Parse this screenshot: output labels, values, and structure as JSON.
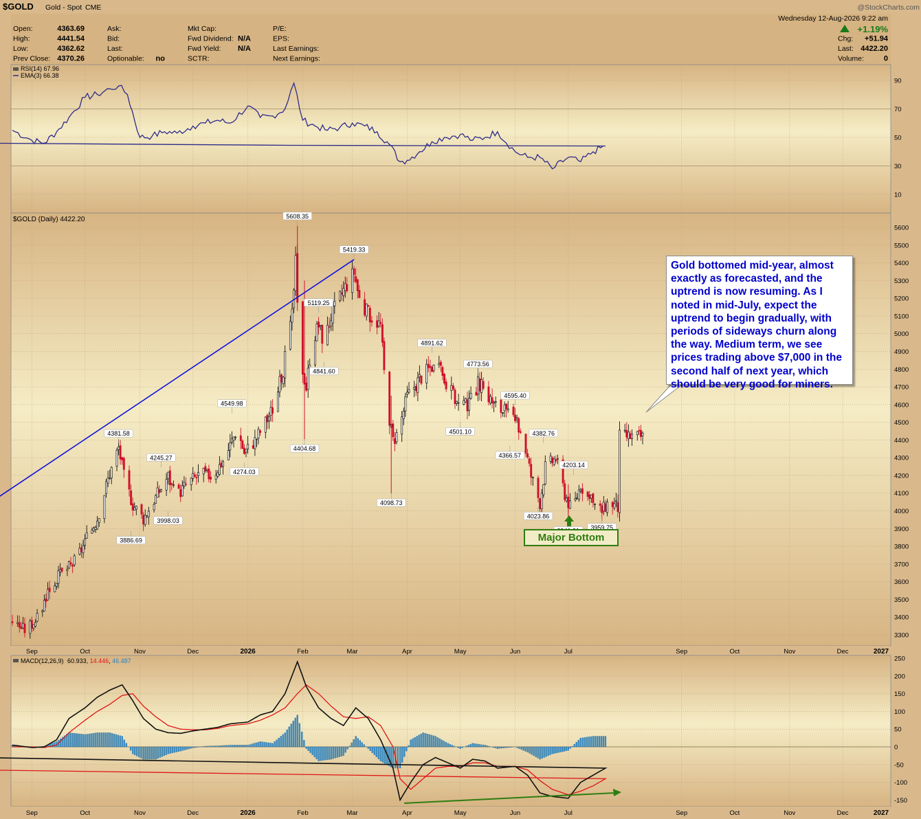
{
  "header": {
    "symbol": "$GOLD",
    "name": "Gold - Spot",
    "exchange": "CME",
    "date": "Wednesday  12-Aug-2026  9:22 am",
    "watermark": "@StockCharts.com",
    "pct_change": "+1.19%",
    "quote_left": [
      {
        "label": "Open:",
        "value": "4363.69"
      },
      {
        "label": "High:",
        "value": "4441.54"
      },
      {
        "label": "Low:",
        "value": "4362.62"
      },
      {
        "label": "Prev Close:",
        "value": "4370.26"
      }
    ],
    "quote_mid": [
      {
        "label": "Ask:",
        "value": ""
      },
      {
        "label": "Bid:",
        "value": ""
      },
      {
        "label": "Last:",
        "value": ""
      },
      {
        "label": "Optionable:",
        "value": "no"
      }
    ],
    "quote_fund": [
      {
        "label": "Mkt Cap:",
        "value": ""
      },
      {
        "label": "Fwd Dividend:",
        "value": "N/A"
      },
      {
        "label": "Fwd Yield:",
        "value": "N/A"
      },
      {
        "label": "SCTR:",
        "value": ""
      }
    ],
    "quote_earn": [
      {
        "label": "P/E:",
        "value": ""
      },
      {
        "label": "EPS:",
        "value": ""
      },
      {
        "label": "Last Earnings:",
        "value": ""
      },
      {
        "label": "Next Earnings:",
        "value": ""
      }
    ],
    "quote_right": [
      {
        "label": "Chg:",
        "value": "+51.94"
      },
      {
        "label": "Last:",
        "value": "4422.20"
      },
      {
        "label": "Volume:",
        "value": "0"
      }
    ]
  },
  "chart_data": [
    {
      "type": "line",
      "panel": "rsi",
      "legend": [
        "RSI(14) 67.96",
        "EMA(3) 66.38"
      ],
      "ylim": [
        0,
        100
      ],
      "yticks": [
        10,
        30,
        50,
        70,
        90
      ],
      "x": [
        "Aug 21",
        "Sep 1",
        "Sep 8",
        "Sep 15",
        "Sep 22",
        "Oct 1",
        "Oct 8",
        "Oct 15",
        "Oct 20",
        "Oct 25",
        "Nov 1",
        "Nov 8",
        "Nov 15",
        "Nov 22",
        "Dec 1",
        "Dec 8",
        "Dec 15",
        "Dec 22",
        "Jan 1",
        "Jan 8",
        "Jan 15",
        "Jan 22",
        "Jan 27",
        "Feb 1",
        "Feb 8",
        "Feb 15",
        "Feb 22",
        "Mar 1",
        "Mar 8",
        "Mar 15",
        "Mar 22",
        "Mar 28",
        "Apr 1",
        "Apr 8",
        "Apr 15",
        "Apr 22",
        "May 1",
        "May 8",
        "May 15",
        "May 22",
        "Jun 1",
        "Jun 8",
        "Jun 15",
        "Jun 22",
        "Jul 1",
        "Jul 8",
        "Jul 15",
        "Jul 22",
        "Aug 1",
        "Aug 8",
        "Aug 12"
      ],
      "y": [
        55,
        48,
        46,
        54,
        64,
        78,
        80,
        84,
        86,
        80,
        50,
        51,
        54,
        53,
        58,
        60,
        62,
        60,
        72,
        64,
        65,
        70,
        88,
        62,
        58,
        55,
        57,
        60,
        58,
        54,
        45,
        33,
        34,
        40,
        47,
        50,
        52,
        48,
        50,
        54,
        40,
        36,
        36,
        28,
        36,
        33,
        40,
        44,
        46,
        55,
        68
      ]
    },
    {
      "type": "candlestick",
      "panel": "price",
      "legend": "$GOLD (Daily) 4422.20",
      "ylim": [
        3250,
        5700
      ],
      "yticks": [
        3300,
        3400,
        3500,
        3600,
        3700,
        3800,
        3900,
        4000,
        4100,
        4200,
        4300,
        4400,
        4500,
        4600,
        4700,
        4800,
        4900,
        5000,
        5100,
        5200,
        5300,
        5400,
        5500,
        5600
      ],
      "x_labels": [
        "Sep",
        "Oct",
        "Nov",
        "Dec",
        "2026",
        "Feb",
        "Mar",
        "Apr",
        "May",
        "Jun",
        "Jul",
        "Aug",
        "Sep",
        "Oct",
        "Nov",
        "Dec",
        "2027"
      ],
      "close_path": [
        [
          "Aug 21",
          3380
        ],
        [
          "Aug 28",
          3330
        ],
        [
          "Sep 5",
          3400
        ],
        [
          "Sep 10",
          3550
        ],
        [
          "Sep 17",
          3640
        ],
        [
          "Sep 24",
          3700
        ],
        [
          "Oct 1",
          3820
        ],
        [
          "Oct 8",
          3960
        ],
        [
          "Oct 14",
          4180
        ],
        [
          "Oct 20",
          4360
        ],
        [
          "Oct 23",
          4200
        ],
        [
          "Oct 28",
          4040
        ],
        [
          "Nov 3",
          3960
        ],
        [
          "Nov 10",
          4080
        ],
        [
          "Nov 17",
          4200
        ],
        [
          "Nov 21",
          4080
        ],
        [
          "Nov 28",
          4160
        ],
        [
          "Dec 5",
          4210
        ],
        [
          "Dec 12",
          4200
        ],
        [
          "Dec 19",
          4300
        ],
        [
          "Dec 26",
          4470
        ],
        [
          "Dec 30",
          4330
        ],
        [
          "Jan 5",
          4400
        ],
        [
          "Jan 12",
          4520
        ],
        [
          "Jan 16",
          4600
        ],
        [
          "Jan 21",
          4800
        ],
        [
          "Jan 26",
          5100
        ],
        [
          "Jan 28",
          5400
        ],
        [
          "Jan 30",
          4900
        ],
        [
          "Feb 3",
          4700
        ],
        [
          "Feb 6",
          4950
        ],
        [
          "Feb 10",
          5050
        ],
        [
          "Feb 13",
          4950
        ],
        [
          "Feb 17",
          5100
        ],
        [
          "Feb 24",
          5250
        ],
        [
          "Mar 2",
          5350
        ],
        [
          "Mar 6",
          5150
        ],
        [
          "Mar 12",
          5100
        ],
        [
          "Mar 17",
          5050
        ],
        [
          "Mar 20",
          4650
        ],
        [
          "Mar 24",
          4400
        ],
        [
          "Mar 27",
          4450
        ],
        [
          "Apr 1",
          4650
        ],
        [
          "Apr 8",
          4750
        ],
        [
          "Apr 15",
          4820
        ],
        [
          "Apr 20",
          4780
        ],
        [
          "Apr 27",
          4650
        ],
        [
          "May 1",
          4580
        ],
        [
          "May 6",
          4600
        ],
        [
          "May 11",
          4720
        ],
        [
          "May 15",
          4680
        ],
        [
          "May 20",
          4600
        ],
        [
          "May 26",
          4560
        ],
        [
          "Jun 1",
          4500
        ],
        [
          "Jun 5",
          4440
        ],
        [
          "Jun 10",
          4200
        ],
        [
          "Jun 15",
          4050
        ],
        [
          "Jun 18",
          4250
        ],
        [
          "Jun 24",
          4300
        ],
        [
          "Jun 29",
          4100
        ],
        [
          "Jul 3",
          4000
        ],
        [
          "Jul 8",
          4150
        ],
        [
          "Jul 14",
          4050
        ],
        [
          "Jul 20",
          4000
        ],
        [
          "Jul 24",
          4060
        ],
        [
          "Jul 29",
          4020
        ],
        [
          "Aug 3",
          4080
        ],
        [
          "Aug 6",
          4250
        ],
        [
          "Aug 10",
          4370
        ],
        [
          "Aug 12",
          4422
        ]
      ],
      "annotations": [
        {
          "date": "Oct 20",
          "value": "4381.58",
          "pos": "above"
        },
        {
          "date": "Oct 27",
          "value": "3886.69",
          "pos": "below"
        },
        {
          "date": "Nov 13",
          "value": "4245.27",
          "pos": "above"
        },
        {
          "date": "Nov 17",
          "value": "3998.03",
          "pos": "below"
        },
        {
          "date": "Dec 30",
          "value": "4274.03",
          "pos": "below"
        },
        {
          "date": "Dec 23",
          "value": "4549.98",
          "pos": "above"
        },
        {
          "date": "Jan 29",
          "value": "5608.35",
          "pos": "above"
        },
        {
          "date": "Feb 2",
          "value": "4404.68",
          "pos": "below"
        },
        {
          "date": "Feb 10",
          "value": "5119.25",
          "pos": "above"
        },
        {
          "date": "Feb 13",
          "value": "4841.60",
          "pos": "below"
        },
        {
          "date": "Mar 2",
          "value": "5419.33",
          "pos": "above"
        },
        {
          "date": "Mar 23",
          "value": "4098.73",
          "pos": "below"
        },
        {
          "date": "Apr 15",
          "value": "4891.62",
          "pos": "above"
        },
        {
          "date": "May 1",
          "value": "4501.10",
          "pos": "below"
        },
        {
          "date": "May 11",
          "value": "4773.56",
          "pos": "above"
        },
        {
          "date": "Jun 1",
          "value": "4595.40",
          "pos": "above"
        },
        {
          "date": "May 29",
          "value": "4366.57",
          "pos": "below"
        },
        {
          "date": "Jun 17",
          "value": "4382.76",
          "pos": "above"
        },
        {
          "date": "Jun 14",
          "value": "4023.86",
          "pos": "below"
        },
        {
          "date": "Jul 4",
          "value": "4203.14",
          "pos": "above"
        },
        {
          "date": "Jul 1",
          "value": "3941.91",
          "pos": "below"
        },
        {
          "date": "Jul 20",
          "value": "3959.75",
          "pos": "below"
        }
      ],
      "trendline": [
        [
          "Mar 2",
          5419
        ],
        [
          "Aug 12",
          4070
        ]
      ],
      "callout": "Gold bottomed mid-year, almost exactly as forecasted, and the uptrend is now resuming. As I noted in mid-July, expect the uptrend to begin gradually, with periods of sideways churn along the way. Medium term, we see prices trading above $7,000 in the second half of next year, which should be very good for miners.",
      "badge": "Major Bottom"
    },
    {
      "type": "line",
      "panel": "macd",
      "legend": {
        "label": "MACD(12,26,9)",
        "macd": "60.933",
        "signal": "14.446",
        "hist": "46.487"
      },
      "ylim": [
        -170,
        260
      ],
      "yticks": [
        -150,
        -100,
        -50,
        0,
        50,
        100,
        150,
        200,
        250
      ],
      "x": [
        "Aug 21",
        "Sep 1",
        "Sep 8",
        "Sep 15",
        "Sep 22",
        "Oct 1",
        "Oct 8",
        "Oct 15",
        "Oct 22",
        "Oct 28",
        "Nov 3",
        "Nov 10",
        "Nov 17",
        "Nov 24",
        "Dec 1",
        "Dec 8",
        "Dec 15",
        "Dec 22",
        "Jan 1",
        "Jan 8",
        "Jan 15",
        "Jan 22",
        "Jan 29",
        "Feb 3",
        "Feb 10",
        "Feb 17",
        "Feb 24",
        "Mar 3",
        "Mar 10",
        "Mar 17",
        "Mar 24",
        "Mar 28",
        "Apr 3",
        "Apr 10",
        "Apr 17",
        "Apr 24",
        "May 1",
        "May 8",
        "May 15",
        "May 22",
        "Jun 1",
        "Jun 8",
        "Jun 15",
        "Jun 22",
        "Jul 1",
        "Jul 8",
        "Jul 15",
        "Jul 22",
        "Aug 1",
        "Aug 8",
        "Aug 12"
      ],
      "macd": [
        5,
        -2,
        0,
        20,
        80,
        110,
        140,
        160,
        175,
        130,
        80,
        50,
        40,
        38,
        45,
        50,
        55,
        65,
        70,
        90,
        100,
        150,
        240,
        170,
        110,
        80,
        60,
        110,
        80,
        20,
        -60,
        -150,
        -100,
        -50,
        -30,
        -45,
        -60,
        -35,
        -40,
        -60,
        -55,
        -80,
        -130,
        -140,
        -145,
        -100,
        -80,
        -60,
        -30,
        20,
        60
      ],
      "signal": [
        0,
        0,
        -2,
        5,
        40,
        75,
        100,
        120,
        145,
        150,
        115,
        85,
        60,
        50,
        48,
        48,
        52,
        60,
        65,
        75,
        90,
        110,
        150,
        175,
        150,
        115,
        85,
        80,
        85,
        60,
        0,
        -90,
        -120,
        -90,
        -60,
        -55,
        -55,
        -45,
        -45,
        -55,
        -55,
        -65,
        -95,
        -120,
        -135,
        -125,
        -110,
        -90,
        -65,
        -30,
        15
      ]
    }
  ]
}
